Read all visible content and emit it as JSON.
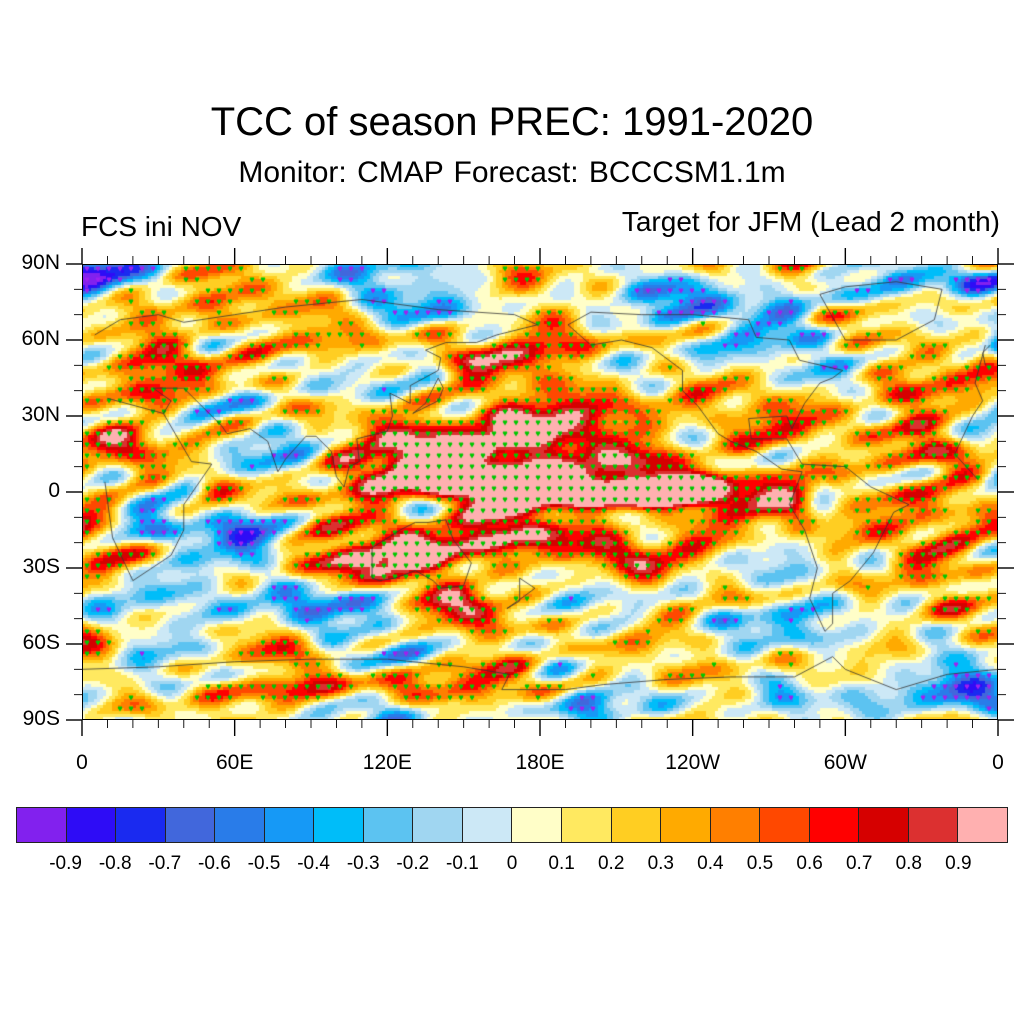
{
  "header": {
    "title": "TCC of season PREC: 1991-2020",
    "subtitle": "Monitor: CMAP   Forecast: BCCCSM1.1m",
    "left_string": "FCS ini NOV",
    "right_string": "Target for JFM (Lead 2 month)"
  },
  "map": {
    "projection": "cylindrical-equidistant",
    "lon_range": [
      0,
      360
    ],
    "lat_range": [
      -90,
      90
    ],
    "y_axis_labels": [
      {
        "lat": 90,
        "label": "90N"
      },
      {
        "lat": 60,
        "label": "60N"
      },
      {
        "lat": 30,
        "label": "30N"
      },
      {
        "lat": 0,
        "label": "0"
      },
      {
        "lat": -30,
        "label": "30S"
      },
      {
        "lat": -60,
        "label": "60S"
      },
      {
        "lat": -90,
        "label": "90S"
      }
    ],
    "x_axis_labels": [
      {
        "lon": 0,
        "label": "0"
      },
      {
        "lon": 60,
        "label": "60E"
      },
      {
        "lon": 120,
        "label": "120E"
      },
      {
        "lon": 180,
        "label": "180E"
      },
      {
        "lon": 240,
        "label": "120W"
      },
      {
        "lon": 300,
        "label": "60W"
      },
      {
        "lon": 360,
        "label": "0"
      }
    ],
    "minor_tick_lon_step": 10,
    "minor_tick_lat_step": 10,
    "significance": {
      "positive_dot_color": "#00c800",
      "negative_dot_color": "#a020f0",
      "positive_threshold": 0.36,
      "negative_threshold": -0.36
    },
    "coastline_color": "#333333",
    "background_value": 0.1,
    "anomaly_features": [
      {
        "lon": 205,
        "lat": 0,
        "dlon": 55,
        "dlat": 6,
        "value": 0.95
      },
      {
        "lon": 225,
        "lat": -1,
        "dlon": 18,
        "dlat": 3,
        "value": 1.2
      },
      {
        "lon": 180,
        "lat": 0,
        "dlon": 25,
        "dlat": 5,
        "value": 0.55
      },
      {
        "lon": 130,
        "lat": 12,
        "dlon": 25,
        "dlat": 8,
        "value": 0.85
      },
      {
        "lon": 160,
        "lat": 20,
        "dlon": 30,
        "dlat": 9,
        "value": 0.55
      },
      {
        "lon": 200,
        "lat": 22,
        "dlon": 25,
        "dlat": 10,
        "value": 0.6
      },
      {
        "lon": 230,
        "lat": 28,
        "dlon": 14,
        "dlat": 12,
        "value": 0.55
      },
      {
        "lon": 265,
        "lat": 25,
        "dlon": 12,
        "dlat": 6,
        "value": 0.7
      },
      {
        "lon": 285,
        "lat": 5,
        "dlon": 10,
        "dlat": 8,
        "value": 0.7
      },
      {
        "lon": 52,
        "lat": 0,
        "dlon": 7,
        "dlat": 5,
        "value": 0.85
      },
      {
        "lon": 105,
        "lat": -20,
        "dlon": 22,
        "dlat": 10,
        "value": 0.55
      },
      {
        "lon": 140,
        "lat": -22,
        "dlon": 15,
        "dlat": 8,
        "value": 0.45
      },
      {
        "lon": 165,
        "lat": -15,
        "dlon": 15,
        "dlat": 8,
        "value": 0.5
      },
      {
        "lon": 195,
        "lat": -20,
        "dlon": 18,
        "dlat": 8,
        "value": 0.5
      },
      {
        "lon": 225,
        "lat": -25,
        "dlon": 20,
        "dlat": 10,
        "value": 0.45
      },
      {
        "lon": 145,
        "lat": 45,
        "dlon": 15,
        "dlat": 10,
        "value": 0.55
      },
      {
        "lon": 110,
        "lat": 62,
        "dlon": 25,
        "dlat": 6,
        "value": 0.35
      },
      {
        "lon": 25,
        "lat": 40,
        "dlon": 10,
        "dlat": 6,
        "value": 0.45
      },
      {
        "lon": 35,
        "lat": 60,
        "dlon": 12,
        "dlat": 6,
        "value": 0.35
      },
      {
        "lon": 100,
        "lat": -78,
        "dlon": 50,
        "dlat": 4,
        "value": 0.4
      },
      {
        "lon": 160,
        "lat": -70,
        "dlon": 30,
        "dlat": 5,
        "value": 0.35
      },
      {
        "lon": 212,
        "lat": -58,
        "dlon": 14,
        "dlat": 5,
        "value": 0.45
      },
      {
        "lon": 300,
        "lat": -20,
        "dlon": 10,
        "dlat": 6,
        "value": 0.45
      },
      {
        "lon": 340,
        "lat": -30,
        "dlon": 15,
        "dlat": 10,
        "value": 0.35
      },
      {
        "lon": 330,
        "lat": 30,
        "dlon": 12,
        "dlat": 8,
        "value": 0.45
      },
      {
        "lon": 355,
        "lat": 55,
        "dlon": 5,
        "dlat": 5,
        "value": 0.5
      },
      {
        "lon": 138,
        "lat": -5,
        "dlon": 12,
        "dlat": 4,
        "value": -0.5
      },
      {
        "lon": 70,
        "lat": -18,
        "dlon": 12,
        "dlat": 4,
        "value": -0.4
      },
      {
        "lon": 95,
        "lat": 25,
        "dlon": 15,
        "dlat": 12,
        "value": -0.3
      },
      {
        "lon": 25,
        "lat": -10,
        "dlon": 10,
        "dlat": 8,
        "value": -0.3
      },
      {
        "lon": 5,
        "lat": 84,
        "dlon": 10,
        "dlat": 5,
        "value": -0.5
      },
      {
        "lon": 225,
        "lat": 75,
        "dlon": 20,
        "dlat": 7,
        "value": -0.45
      },
      {
        "lon": 270,
        "lat": 62,
        "dlon": 15,
        "dlat": 10,
        "value": -0.4
      },
      {
        "lon": 345,
        "lat": 84,
        "dlon": 25,
        "dlat": 4,
        "value": -0.5
      },
      {
        "lon": 330,
        "lat": -82,
        "dlon": 25,
        "dlat": 5,
        "value": -0.5
      },
      {
        "lon": 100,
        "lat": -45,
        "dlon": 25,
        "dlat": 6,
        "value": -0.3
      },
      {
        "lon": 250,
        "lat": -45,
        "dlon": 30,
        "dlat": 8,
        "value": -0.2
      },
      {
        "lon": 180,
        "lat": -85,
        "dlon": 60,
        "dlat": 4,
        "value": -0.2
      },
      {
        "lon": 290,
        "lat": -5,
        "dlon": 5,
        "dlat": 10,
        "value": -0.35
      },
      {
        "lon": 310,
        "lat": 10,
        "dlon": 20,
        "dlat": 6,
        "value": -0.2
      }
    ]
  },
  "colorbar": {
    "colors": [
      "#8221ee",
      "#2e0cf6",
      "#1a2af0",
      "#4167dc",
      "#297ce9",
      "#1699f6",
      "#00bdf9",
      "#5cc3f1",
      "#a0d6f1",
      "#cce8f6",
      "#fffec8",
      "#ffe960",
      "#ffce22",
      "#ffaa00",
      "#ff7f00",
      "#ff4800",
      "#ff0000",
      "#d60000",
      "#dc3030",
      "#ffb0b0"
    ],
    "levels": [
      "-0.9",
      "-0.8",
      "-0.7",
      "-0.6",
      "-0.5",
      "-0.4",
      "-0.3",
      "-0.2",
      "-0.1",
      "0",
      "0.1",
      "0.2",
      "0.3",
      "0.4",
      "0.5",
      "0.6",
      "0.7",
      "0.8",
      "0.9"
    ],
    "level_values": [
      -0.9,
      -0.8,
      -0.7,
      -0.6,
      -0.5,
      -0.4,
      -0.3,
      -0.2,
      -0.1,
      0,
      0.1,
      0.2,
      0.3,
      0.4,
      0.5,
      0.6,
      0.7,
      0.8,
      0.9
    ]
  }
}
